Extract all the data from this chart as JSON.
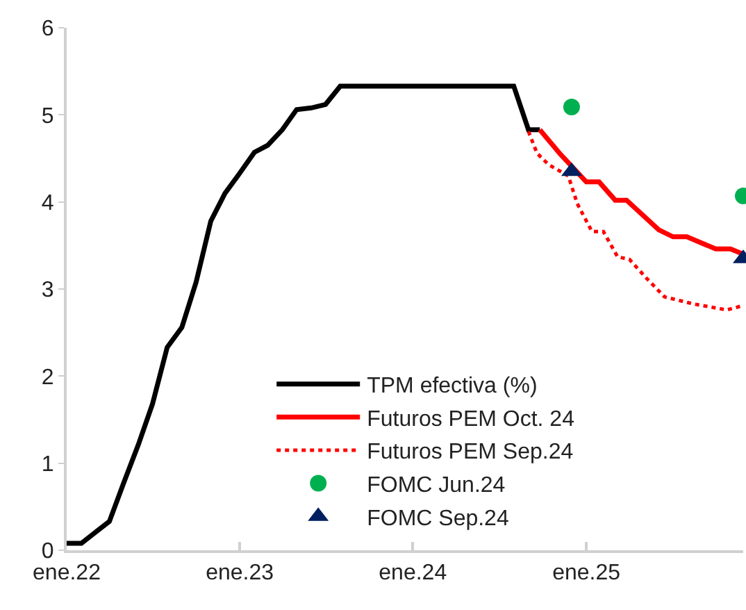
{
  "chart_data": {
    "type": "line",
    "xlim": [
      "2022-01-01",
      "2025-11-28"
    ],
    "xticks": [
      {
        "value": "2022-01-01",
        "label": "ene.22"
      },
      {
        "value": "2023-01-01",
        "label": "ene.23"
      },
      {
        "value": "2024-01-01",
        "label": "ene.24"
      },
      {
        "value": "2025-01-01",
        "label": "ene.25"
      }
    ],
    "ylim": [
      0,
      6
    ],
    "yticks": [
      0,
      1,
      2,
      3,
      4,
      5,
      6
    ],
    "grid": false,
    "legend": "bottom right",
    "series": [
      {
        "name": "TPM efectiva (%)",
        "color": "#000000",
        "line_style": "solid",
        "marker": "none",
        "x": [
          "2022-01-01",
          "2022-02-01",
          "2022-03-01",
          "2022-04-01",
          "2022-05-01",
          "2022-06-01",
          "2022-07-01",
          "2022-08-01",
          "2022-09-01",
          "2022-10-01",
          "2022-11-01",
          "2022-12-01",
          "2023-01-01",
          "2023-02-01",
          "2023-03-01",
          "2023-04-01",
          "2023-05-01",
          "2023-06-01",
          "2023-07-01",
          "2023-08-01",
          "2023-09-01",
          "2023-12-01",
          "2024-03-01",
          "2024-06-01",
          "2024-08-01",
          "2024-09-01",
          "2024-09-25"
        ],
        "values": [
          0.08,
          0.08,
          0.2,
          0.33,
          0.77,
          1.21,
          1.68,
          2.33,
          2.56,
          3.08,
          3.78,
          4.1,
          4.33,
          4.57,
          4.65,
          4.83,
          5.06,
          5.08,
          5.12,
          5.33,
          5.33,
          5.33,
          5.33,
          5.33,
          5.33,
          4.83,
          4.83
        ]
      },
      {
        "name": "Futuros PEM Oct. 24",
        "color": "#ff0000",
        "line_style": "solid",
        "marker": "none",
        "x": [
          "2024-09-25",
          "2024-11-07",
          "2025-01-01",
          "2025-01-28",
          "2025-03-03",
          "2025-03-27",
          "2025-06-03",
          "2025-07-03",
          "2025-08-01",
          "2025-10-01",
          "2025-11-01",
          "2025-11-28"
        ],
        "values": [
          4.83,
          4.55,
          4.23,
          4.23,
          4.02,
          4.02,
          3.68,
          3.6,
          3.6,
          3.46,
          3.46,
          3.4
        ]
      },
      {
        "name": "Futuros PEM Sep.24",
        "color": "#ff0000",
        "line_style": "dotted",
        "marker": "none",
        "x": [
          "2024-09-01",
          "2024-09-19",
          "2024-10-13",
          "2024-11-24",
          "2024-12-13",
          "2025-01-13",
          "2025-02-06",
          "2025-03-08",
          "2025-04-02",
          "2025-05-07",
          "2025-06-15",
          "2025-08-14",
          "2025-10-24",
          "2025-11-28"
        ],
        "values": [
          4.81,
          4.56,
          4.43,
          4.3,
          3.98,
          3.66,
          3.66,
          3.37,
          3.34,
          3.13,
          2.91,
          2.83,
          2.76,
          2.81
        ]
      },
      {
        "name": "FOMC Jun.24",
        "type": "scatter",
        "color": "#00b050",
        "marker": "circle",
        "x": [
          "2024-12-01",
          "2025-11-28"
        ],
        "values": [
          5.09,
          4.07
        ]
      },
      {
        "name": "FOMC Sep.24",
        "type": "scatter",
        "color": "#002060",
        "marker": "triangle",
        "x": [
          "2024-12-01",
          "2025-11-28"
        ],
        "values": [
          4.35,
          3.35
        ]
      }
    ]
  }
}
